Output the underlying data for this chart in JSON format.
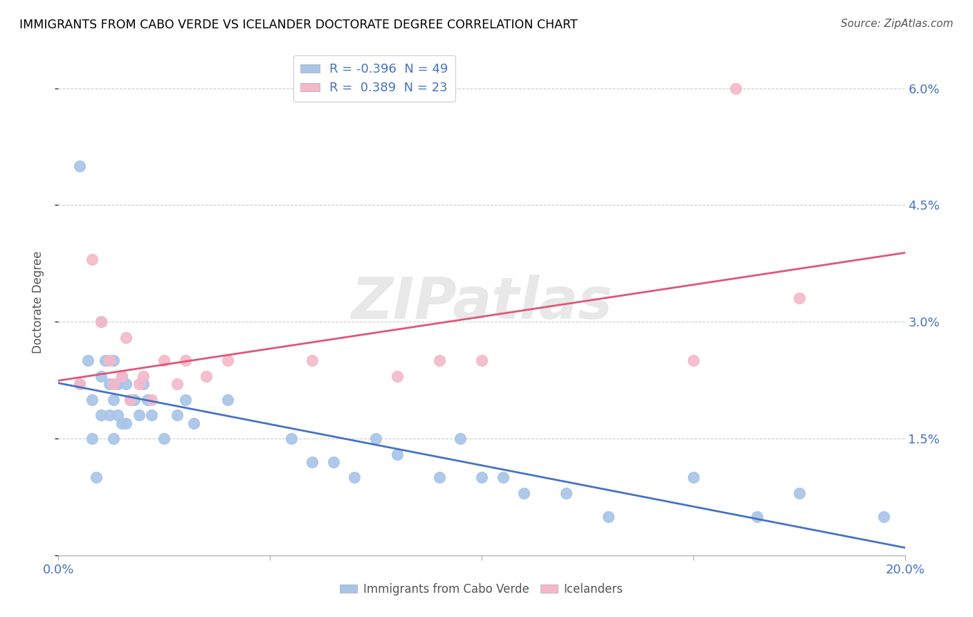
{
  "title": "IMMIGRANTS FROM CABO VERDE VS ICELANDER DOCTORATE DEGREE CORRELATION CHART",
  "source": "Source: ZipAtlas.com",
  "ylabel_label": "Doctorate Degree",
  "legend_label1": "Immigrants from Cabo Verde",
  "legend_label2": "Icelanders",
  "R1": -0.396,
  "N1": 49,
  "R2": 0.389,
  "N2": 23,
  "xmin": 0.0,
  "xmax": 0.2,
  "ymin": 0.0,
  "ymax": 0.065,
  "yticks": [
    0.0,
    0.015,
    0.03,
    0.045,
    0.06
  ],
  "ytick_labels": [
    "",
    "1.5%",
    "3.0%",
    "4.5%",
    "6.0%"
  ],
  "xticks": [
    0.0,
    0.05,
    0.1,
    0.15,
    0.2
  ],
  "xtick_labels": [
    "0.0%",
    "",
    "",
    "",
    "20.0%"
  ],
  "color_blue": "#a8c4e8",
  "color_pink": "#f5b8c8",
  "line_blue": "#4472c4",
  "line_pink": "#e05575",
  "watermark": "ZIPatlas",
  "blue_points_x": [
    0.005,
    0.005,
    0.007,
    0.008,
    0.008,
    0.009,
    0.01,
    0.01,
    0.01,
    0.011,
    0.012,
    0.012,
    0.013,
    0.013,
    0.013,
    0.014,
    0.014,
    0.015,
    0.015,
    0.016,
    0.016,
    0.017,
    0.018,
    0.019,
    0.02,
    0.021,
    0.022,
    0.025,
    0.028,
    0.03,
    0.032,
    0.04,
    0.055,
    0.06,
    0.065,
    0.07,
    0.075,
    0.08,
    0.09,
    0.095,
    0.1,
    0.105,
    0.11,
    0.12,
    0.13,
    0.15,
    0.165,
    0.175,
    0.195
  ],
  "blue_points_y": [
    0.05,
    0.022,
    0.025,
    0.02,
    0.015,
    0.01,
    0.03,
    0.023,
    0.018,
    0.025,
    0.022,
    0.018,
    0.025,
    0.02,
    0.015,
    0.022,
    0.018,
    0.023,
    0.017,
    0.022,
    0.017,
    0.02,
    0.02,
    0.018,
    0.022,
    0.02,
    0.018,
    0.015,
    0.018,
    0.02,
    0.017,
    0.02,
    0.015,
    0.012,
    0.012,
    0.01,
    0.015,
    0.013,
    0.01,
    0.015,
    0.01,
    0.01,
    0.008,
    0.008,
    0.005,
    0.01,
    0.005,
    0.008,
    0.005
  ],
  "pink_points_x": [
    0.005,
    0.008,
    0.01,
    0.012,
    0.013,
    0.015,
    0.016,
    0.017,
    0.019,
    0.02,
    0.022,
    0.025,
    0.028,
    0.03,
    0.035,
    0.04,
    0.06,
    0.08,
    0.09,
    0.1,
    0.15,
    0.16,
    0.175
  ],
  "pink_points_y": [
    0.022,
    0.038,
    0.03,
    0.025,
    0.022,
    0.023,
    0.028,
    0.02,
    0.022,
    0.023,
    0.02,
    0.025,
    0.022,
    0.025,
    0.023,
    0.025,
    0.025,
    0.023,
    0.025,
    0.025,
    0.025,
    0.06,
    0.033
  ]
}
